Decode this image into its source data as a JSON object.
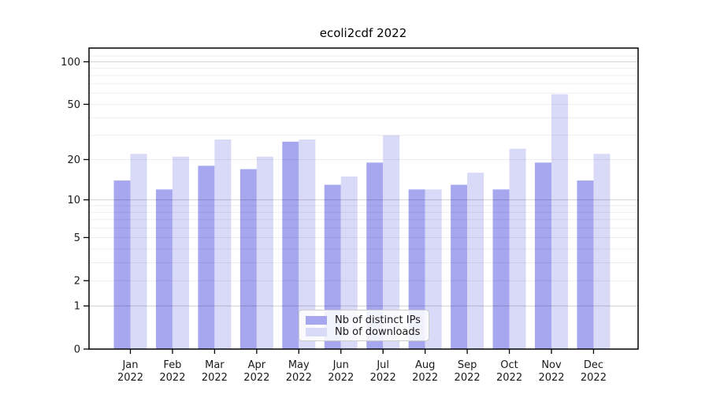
{
  "title": "ecoli2cdf 2022",
  "chart_data": {
    "type": "bar",
    "title": "ecoli2cdf 2022",
    "categories": [
      "Jan",
      "Feb",
      "Mar",
      "Apr",
      "May",
      "Jun",
      "Jul",
      "Aug",
      "Sep",
      "Oct",
      "Nov",
      "Dec"
    ],
    "year_label": "2022",
    "series": [
      {
        "name": "Nb of distinct IPs",
        "color": "#a7a7f0",
        "values": [
          14,
          12,
          18,
          17,
          27,
          13,
          19,
          12,
          13,
          12,
          19,
          14
        ]
      },
      {
        "name": "Nb of downloads",
        "color": "#d9d9f8",
        "values": [
          22,
          21,
          28,
          21,
          28,
          15,
          30,
          12,
          16,
          24,
          59,
          22
        ]
      }
    ],
    "y_scale": "log1p",
    "y_tick_labels": [
      "100",
      "50",
      "20",
      "10",
      "5",
      "2",
      "1",
      "0"
    ],
    "y_tick_values": [
      100,
      50,
      20,
      10,
      5,
      2,
      1,
      0
    ],
    "y_major_gridlines": [
      1,
      10,
      100
    ],
    "y_minor_gridlines": [
      2,
      3,
      4,
      5,
      6,
      7,
      8,
      9,
      20,
      30,
      40,
      50,
      60,
      70,
      80,
      90,
      110
    ],
    "ylim": [
      0,
      125
    ],
    "grid": true,
    "legend_position": "lower center inside",
    "colors": {
      "spine": "#000000",
      "tick_text": "#191919",
      "minor_grid": "rgba(0,0,0,0.07)",
      "major_grid": "rgba(0,0,0,0.18)"
    }
  }
}
